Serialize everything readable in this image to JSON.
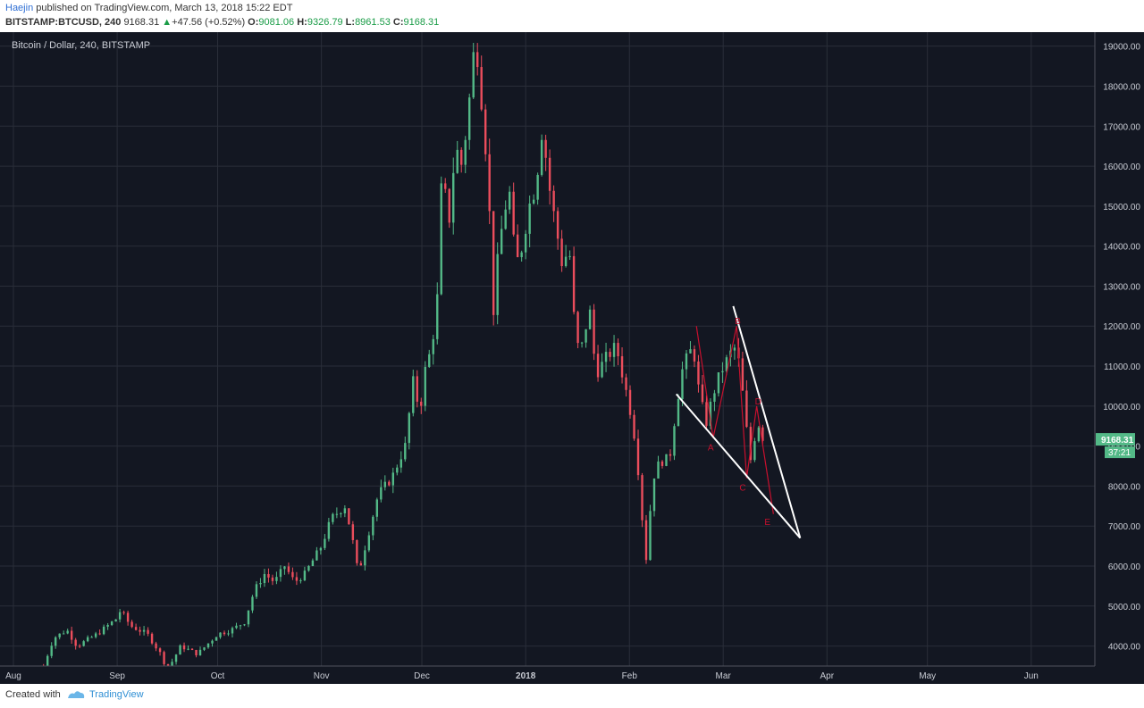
{
  "header": {
    "author": "Haejin",
    "published_text": " published on TradingView.com, March 13, 2018 15:22 EDT",
    "symbol": "BITSTAMP:BTCUSD, 240",
    "last": "9168.31",
    "change_arrow": "▲",
    "change": "+47.56 (+0.52%)",
    "open_label": "O:",
    "open": "9081.06",
    "high_label": "H:",
    "high": "9326.79",
    "low_label": "L:",
    "low": "8961.53",
    "close_label": "C:",
    "close": "9168.31"
  },
  "chart_label": "Bitcoin / Dollar, 240, BITSTAMP",
  "price_badge": {
    "price": "9168.31",
    "countdown": "37:21"
  },
  "footer": {
    "created_with": "Created with",
    "brand": "TradingView"
  },
  "colors": {
    "background": "#131722",
    "grid": "#2a2e39",
    "candle_up": "#53b987",
    "candle_down": "#eb4d5c",
    "pattern_red": "#c8102e",
    "trendline": "#ffffff",
    "badge": "#53b987"
  },
  "chart_data": {
    "type": "candlestick",
    "title": "Bitcoin / Dollar, 240, BITSTAMP",
    "ylim": [
      3500,
      19350
    ],
    "xlim": [
      "2017-07-28",
      "2018-06-20"
    ],
    "y_ticks": [
      "4000.00",
      "5000.00",
      "6000.00",
      "7000.00",
      "8000.00",
      "9000.00",
      "10000.00",
      "11000.00",
      "12000.00",
      "13000.00",
      "14000.00",
      "15000.00",
      "16000.00",
      "17000.00",
      "18000.00",
      "19000.00"
    ],
    "x_ticks": [
      {
        "label": "Aug",
        "date": "2017-08-01"
      },
      {
        "label": "Sep",
        "date": "2017-09-01"
      },
      {
        "label": "Oct",
        "date": "2017-10-01"
      },
      {
        "label": "Nov",
        "date": "2017-11-01"
      },
      {
        "label": "Dec",
        "date": "2017-12-01"
      },
      {
        "label": "2018",
        "date": "2018-01-01"
      },
      {
        "label": "Feb",
        "date": "2018-02-01"
      },
      {
        "label": "Mar",
        "date": "2018-03-01"
      },
      {
        "label": "Apr",
        "date": "2018-04-01"
      },
      {
        "label": "May",
        "date": "2018-05-01"
      },
      {
        "label": "Jun",
        "date": "2018-06-01"
      }
    ],
    "price_path": [
      [
        "2017-08-10",
        3500
      ],
      [
        "2017-08-13",
        4200
      ],
      [
        "2017-08-17",
        4400
      ],
      [
        "2017-08-20",
        4000
      ],
      [
        "2017-08-26",
        4300
      ],
      [
        "2017-09-01",
        4700
      ],
      [
        "2017-09-02",
        4900
      ],
      [
        "2017-09-05",
        4500
      ],
      [
        "2017-09-10",
        4300
      ],
      [
        "2017-09-14",
        3800
      ],
      [
        "2017-09-16",
        3400
      ],
      [
        "2017-09-20",
        4000
      ],
      [
        "2017-09-25",
        3800
      ],
      [
        "2017-10-01",
        4300
      ],
      [
        "2017-10-05",
        4400
      ],
      [
        "2017-10-09",
        4600
      ],
      [
        "2017-10-12",
        5400
      ],
      [
        "2017-10-15",
        5800
      ],
      [
        "2017-10-18",
        5600
      ],
      [
        "2017-10-21",
        6000
      ],
      [
        "2017-10-24",
        5600
      ],
      [
        "2017-10-27",
        5800
      ],
      [
        "2017-11-01",
        6500
      ],
      [
        "2017-11-04",
        7200
      ],
      [
        "2017-11-08",
        7500
      ],
      [
        "2017-11-10",
        6800
      ],
      [
        "2017-11-12",
        5800
      ],
      [
        "2017-11-15",
        6800
      ],
      [
        "2017-11-18",
        7800
      ],
      [
        "2017-11-22",
        8200
      ],
      [
        "2017-11-26",
        9000
      ],
      [
        "2017-11-29",
        11000
      ],
      [
        "2017-11-30",
        9600
      ],
      [
        "2017-12-02",
        10900
      ],
      [
        "2017-12-04",
        11500
      ],
      [
        "2017-12-06",
        13000
      ],
      [
        "2017-12-07",
        16000
      ],
      [
        "2017-12-09",
        14500
      ],
      [
        "2017-12-11",
        16500
      ],
      [
        "2017-12-13",
        16000
      ],
      [
        "2017-12-15",
        17500
      ],
      [
        "2017-12-17",
        19300
      ],
      [
        "2017-12-19",
        17500
      ],
      [
        "2017-12-21",
        15500
      ],
      [
        "2017-12-22",
        12000
      ],
      [
        "2017-12-24",
        14000
      ],
      [
        "2017-12-27",
        15500
      ],
      [
        "2017-12-29",
        13500
      ],
      [
        "2017-12-31",
        14000
      ],
      [
        "2018-01-02",
        15000
      ],
      [
        "2018-01-04",
        15500
      ],
      [
        "2018-01-06",
        17000
      ],
      [
        "2018-01-08",
        15500
      ],
      [
        "2018-01-10",
        14500
      ],
      [
        "2018-01-12",
        13500
      ],
      [
        "2018-01-14",
        14000
      ],
      [
        "2018-01-16",
        11500
      ],
      [
        "2018-01-18",
        11500
      ],
      [
        "2018-01-20",
        12500
      ],
      [
        "2018-01-22",
        10800
      ],
      [
        "2018-01-25",
        11200
      ],
      [
        "2018-01-28",
        11500
      ],
      [
        "2018-02-01",
        10000
      ],
      [
        "2018-02-03",
        9000
      ],
      [
        "2018-02-05",
        7000
      ],
      [
        "2018-02-06",
        6200
      ],
      [
        "2018-02-08",
        8200
      ],
      [
        "2018-02-10",
        8600
      ],
      [
        "2018-02-13",
        8700
      ],
      [
        "2018-02-15",
        10000
      ],
      [
        "2018-02-17",
        11000
      ],
      [
        "2018-02-20",
        11500
      ],
      [
        "2018-02-22",
        10200
      ],
      [
        "2018-02-24",
        9600
      ],
      [
        "2018-02-26",
        10300
      ],
      [
        "2018-02-28",
        10800
      ],
      [
        "2018-03-03",
        11300
      ],
      [
        "2018-03-05",
        11500
      ],
      [
        "2018-03-07",
        10200
      ],
      [
        "2018-03-08",
        9400
      ],
      [
        "2018-03-09",
        8600
      ],
      [
        "2018-03-10",
        8900
      ],
      [
        "2018-03-11",
        9700
      ],
      [
        "2018-03-13",
        9168
      ]
    ],
    "annotations": {
      "wave_points": [
        {
          "label": "",
          "date": "2018-02-21",
          "price": 12000
        },
        {
          "label": "A",
          "date": "2018-02-26",
          "price": 9200
        },
        {
          "label": "B",
          "date": "2018-03-05",
          "price": 12000
        },
        {
          "label": "C",
          "date": "2018-03-08",
          "price": 8200
        },
        {
          "label": "D",
          "date": "2018-03-11",
          "price": 10000
        },
        {
          "label": "E",
          "date": "2018-03-16",
          "price": 7300
        }
      ],
      "lower_trendline": [
        [
          "2018-02-15",
          10300
        ],
        [
          "2018-03-24",
          6700
        ]
      ],
      "upper_trendline": [
        [
          "2018-03-04",
          12500
        ],
        [
          "2018-03-24",
          6700
        ]
      ]
    }
  }
}
